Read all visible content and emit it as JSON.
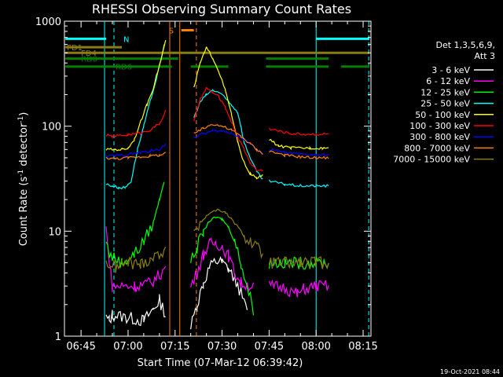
{
  "chart_data": {
    "type": "line",
    "title": "RHESSI Observing Summary Count Rates",
    "xlabel": "Start Time (07-Mar-12 06:39:42)",
    "ylabel_text": "Count Rate (s",
    "ylabel_sup": "-1",
    "ylabel_tail": " detector",
    "ylabel_close": ")",
    "yscale": "log",
    "ylim": [
      1,
      1000
    ],
    "xlim": [
      39.7,
      137.5
    ],
    "x_unit": "minutes after 06:00 UT",
    "x_ticks": [
      {
        "label": "06:45",
        "t": 45
      },
      {
        "label": "07:00",
        "t": 60
      },
      {
        "label": "07:15",
        "t": 75
      },
      {
        "label": "07:30",
        "t": 90
      },
      {
        "label": "07:45",
        "t": 105
      },
      {
        "label": "08:00",
        "t": 120
      },
      {
        "label": "08:15",
        "t": 135
      }
    ],
    "y_ticks": [
      {
        "label": "1",
        "v": 1
      },
      {
        "label": "10",
        "v": 10
      },
      {
        "label": "100",
        "v": 100
      },
      {
        "label": "1000",
        "v": 1000
      }
    ],
    "legend_header": [
      "Det 1,3,5,6,9,",
      "Att 3"
    ],
    "series": [
      {
        "name": "3 - 6 keV",
        "color": "#ffffff",
        "values": [
          [
            52,
            null
          ],
          [
            53,
            1.5
          ],
          [
            54,
            1.4
          ],
          [
            55,
            1.6
          ],
          [
            60,
            1.5
          ],
          [
            65,
            1.4
          ],
          [
            68,
            1.8
          ],
          [
            70,
            2.2
          ],
          [
            72,
            1.6
          ],
          [
            73,
            null
          ],
          [
            79,
            null
          ],
          [
            80,
            1.2
          ],
          [
            82,
            2
          ],
          [
            84,
            3.2
          ],
          [
            86,
            4.5
          ],
          [
            88,
            5.2
          ],
          [
            90,
            5
          ],
          [
            92,
            4.4
          ],
          [
            94,
            3.5
          ],
          [
            96,
            2.6
          ],
          [
            98,
            1.7
          ],
          [
            99,
            null
          ]
        ]
      },
      {
        "name": "6 - 12 keV",
        "color": "#ff00ff",
        "values": [
          [
            52,
            null
          ],
          [
            53,
            11
          ],
          [
            54,
            5
          ],
          [
            55,
            3
          ],
          [
            62,
            3
          ],
          [
            67,
            3.2
          ],
          [
            70,
            3.8
          ],
          [
            72,
            4.5
          ],
          [
            73,
            null
          ],
          [
            79,
            null
          ],
          [
            80,
            3
          ],
          [
            82,
            4
          ],
          [
            84,
            6
          ],
          [
            86,
            7.5
          ],
          [
            88,
            7.8
          ],
          [
            90,
            7.2
          ],
          [
            92,
            5.8
          ],
          [
            94,
            4
          ],
          [
            96,
            3.2
          ],
          [
            100,
            3
          ],
          [
            104,
            null
          ],
          [
            105,
            3
          ],
          [
            110,
            2.9
          ],
          [
            114,
            2.5
          ],
          [
            116,
            2.8
          ],
          [
            120,
            3
          ],
          [
            124,
            3
          ],
          [
            126,
            null
          ]
        ]
      },
      {
        "name": "12 - 25 keV",
        "color": "#00ff00",
        "values": [
          [
            52,
            null
          ],
          [
            53,
            8
          ],
          [
            54,
            6
          ],
          [
            58,
            5
          ],
          [
            62,
            6
          ],
          [
            65,
            8
          ],
          [
            68,
            12
          ],
          [
            70,
            20
          ],
          [
            71.5,
            30
          ],
          [
            73,
            null
          ],
          [
            79,
            null
          ],
          [
            80,
            5
          ],
          [
            82,
            7
          ],
          [
            84,
            10
          ],
          [
            86,
            12.5
          ],
          [
            88,
            13.5
          ],
          [
            90,
            13
          ],
          [
            92,
            11
          ],
          [
            94,
            8
          ],
          [
            96,
            5
          ],
          [
            98,
            3
          ],
          [
            100,
            1.8
          ],
          [
            104,
            null
          ],
          [
            105,
            5
          ],
          [
            110,
            5
          ],
          [
            115,
            5
          ],
          [
            120,
            5
          ],
          [
            124,
            5
          ],
          [
            126,
            null
          ]
        ]
      },
      {
        "name": "25 - 50 keV",
        "color": "#00ffff",
        "values": [
          [
            52,
            null
          ],
          [
            53,
            28
          ],
          [
            55,
            27
          ],
          [
            57,
            26
          ],
          [
            59,
            26
          ],
          [
            61,
            30
          ],
          [
            63,
            60
          ],
          [
            65,
            100
          ],
          [
            67,
            170
          ],
          [
            69,
            280
          ],
          [
            70.5,
            420
          ],
          [
            71.5,
            600
          ],
          [
            72.5,
            null
          ],
          [
            80,
            null
          ],
          [
            81,
            120
          ],
          [
            83,
            170
          ],
          [
            85,
            200
          ],
          [
            87,
            220
          ],
          [
            89,
            210
          ],
          [
            91,
            185
          ],
          [
            93,
            160
          ],
          [
            95,
            135
          ],
          [
            96,
            100
          ],
          [
            97,
            70
          ],
          [
            99,
            50
          ],
          [
            101,
            37
          ],
          [
            103,
            31
          ],
          [
            104,
            null
          ],
          [
            105,
            30
          ],
          [
            110,
            28
          ],
          [
            115,
            27
          ],
          [
            120,
            27
          ],
          [
            124,
            27
          ],
          [
            126,
            null
          ]
        ]
      },
      {
        "name": "50 - 100 keV",
        "color": "#ffff00",
        "values": [
          [
            52,
            null
          ],
          [
            53,
            60
          ],
          [
            56,
            60
          ],
          [
            58,
            60
          ],
          [
            60,
            62
          ],
          [
            62,
            75
          ],
          [
            64,
            110
          ],
          [
            66,
            160
          ],
          [
            68,
            230
          ],
          [
            70,
            380
          ],
          [
            72,
            650
          ],
          [
            73,
            null
          ],
          [
            80,
            null
          ],
          [
            81,
            230
          ],
          [
            83,
            400
          ],
          [
            85,
            560
          ],
          [
            87,
            450
          ],
          [
            89,
            330
          ],
          [
            91,
            220
          ],
          [
            93,
            130
          ],
          [
            95,
            70
          ],
          [
            97,
            45
          ],
          [
            99,
            35
          ],
          [
            101,
            32
          ],
          [
            103,
            34
          ],
          [
            104,
            null
          ],
          [
            105,
            75
          ],
          [
            108,
            65
          ],
          [
            112,
            62
          ],
          [
            118,
            62
          ],
          [
            122,
            62
          ],
          [
            124,
            62
          ],
          [
            126,
            null
          ]
        ]
      },
      {
        "name": "100 - 300 keV",
        "color": "#ff0000",
        "values": [
          [
            52,
            null
          ],
          [
            53,
            82
          ],
          [
            55,
            80
          ],
          [
            60,
            83
          ],
          [
            64,
            86
          ],
          [
            67,
            92
          ],
          [
            70,
            105
          ],
          [
            72,
            140
          ],
          [
            73,
            null
          ],
          [
            80,
            null
          ],
          [
            81,
            110
          ],
          [
            83,
            180
          ],
          [
            85,
            230
          ],
          [
            87,
            210
          ],
          [
            89,
            190
          ],
          [
            91,
            150
          ],
          [
            93,
            110
          ],
          [
            95,
            80
          ],
          [
            97,
            60
          ],
          [
            99,
            45
          ],
          [
            101,
            38
          ],
          [
            103,
            38
          ],
          [
            104,
            null
          ],
          [
            105,
            95
          ],
          [
            108,
            90
          ],
          [
            112,
            85
          ],
          [
            116,
            84
          ],
          [
            120,
            84
          ],
          [
            124,
            84
          ],
          [
            126,
            null
          ]
        ]
      },
      {
        "name": "300 - 800 keV",
        "color": "#0000ff",
        "values": [
          [
            52,
            null
          ],
          [
            53,
            52
          ],
          [
            56,
            52
          ],
          [
            60,
            54
          ],
          [
            64,
            56
          ],
          [
            67,
            58
          ],
          [
            70,
            60
          ],
          [
            72,
            68
          ],
          [
            73,
            null
          ],
          [
            80,
            null
          ],
          [
            81,
            78
          ],
          [
            84,
            85
          ],
          [
            87,
            90
          ],
          [
            90,
            90
          ],
          [
            93,
            86
          ],
          [
            96,
            78
          ],
          [
            99,
            68
          ],
          [
            101,
            60
          ],
          [
            103,
            55
          ],
          [
            104,
            null
          ],
          [
            105,
            60
          ],
          [
            110,
            56
          ],
          [
            115,
            54
          ],
          [
            120,
            53
          ],
          [
            124,
            53
          ],
          [
            126,
            null
          ]
        ]
      },
      {
        "name": "800 - 7000 keV",
        "color": "#ff8000",
        "values": [
          [
            52,
            null
          ],
          [
            53,
            50
          ],
          [
            56,
            49
          ],
          [
            60,
            50
          ],
          [
            64,
            51
          ],
          [
            67,
            52
          ],
          [
            70,
            53
          ],
          [
            72,
            55
          ],
          [
            73,
            null
          ],
          [
            80,
            null
          ],
          [
            81,
            85
          ],
          [
            84,
            95
          ],
          [
            87,
            105
          ],
          [
            90,
            100
          ],
          [
            93,
            92
          ],
          [
            96,
            80
          ],
          [
            99,
            68
          ],
          [
            101,
            60
          ],
          [
            103,
            55
          ],
          [
            104,
            null
          ],
          [
            105,
            58
          ],
          [
            110,
            53
          ],
          [
            115,
            51
          ],
          [
            120,
            50
          ],
          [
            124,
            50
          ],
          [
            126,
            null
          ]
        ]
      },
      {
        "name": "7000 - 15000 keV",
        "color": "#8b7d14",
        "values": [
          [
            52,
            null
          ],
          [
            53,
            5
          ],
          [
            56,
            4.5
          ],
          [
            60,
            5
          ],
          [
            64,
            4.8
          ],
          [
            67,
            5.5
          ],
          [
            70,
            6
          ],
          [
            72,
            7
          ],
          [
            73,
            null
          ],
          [
            80,
            null
          ],
          [
            81,
            9
          ],
          [
            83,
            12
          ],
          [
            85,
            14
          ],
          [
            87,
            15.5
          ],
          [
            89,
            16
          ],
          [
            91,
            15
          ],
          [
            93,
            13
          ],
          [
            95,
            11
          ],
          [
            97,
            9
          ],
          [
            99,
            8
          ],
          [
            101,
            7
          ],
          [
            103,
            6
          ],
          [
            104,
            null
          ],
          [
            105,
            5
          ],
          [
            110,
            5
          ],
          [
            115,
            5
          ],
          [
            120,
            5
          ],
          [
            124,
            5
          ],
          [
            126,
            null
          ]
        ]
      }
    ],
    "flags": [
      {
        "name": "FD1",
        "label": "FD1",
        "color": "#8b7d14",
        "level": 565,
        "label_at": 40.5,
        "segments": [
          [
            40,
            58
          ]
        ]
      },
      {
        "name": "FD4",
        "label": "FD4",
        "color": "#8b7d14",
        "level": 500,
        "label_at": 45,
        "segments": [
          [
            40,
            137
          ]
        ]
      },
      {
        "name": "RD0",
        "label": "RD0",
        "color": "#008000",
        "level": 440,
        "label_at": 45,
        "segments": [
          [
            40,
            76
          ],
          [
            104,
            124
          ]
        ]
      },
      {
        "name": "RD6",
        "label": "RD6",
        "color": "#008000",
        "level": 370,
        "label_at": 56,
        "segments": [
          [
            40,
            74
          ],
          [
            80,
            92
          ],
          [
            104,
            124
          ],
          [
            128,
            137
          ]
        ]
      },
      {
        "name": "N",
        "label": "N",
        "color": "#00ffff",
        "level": 680,
        "label_at": 58.5,
        "segments": [
          [
            40,
            53
          ],
          [
            120,
            137
          ]
        ]
      },
      {
        "name": "S",
        "label": "S",
        "color": "#ff8000",
        "level": 820,
        "label_at": 73,
        "segments": [
          [
            77,
            81
          ]
        ]
      }
    ],
    "vlines": [
      {
        "t": 52.5,
        "color": "#00ffff",
        "dash": "none"
      },
      {
        "t": 55.5,
        "color": "#00ffff",
        "dash": "5,4"
      },
      {
        "t": 73.3,
        "color": "#ff8000",
        "dash": "none"
      },
      {
        "t": 76.5,
        "color": "#ff8000",
        "dash": "none"
      },
      {
        "t": 81.8,
        "color": "#ff8000",
        "dash": "5,4"
      },
      {
        "t": 120.0,
        "color": "#00ffff",
        "dash": "none"
      },
      {
        "t": 136.8,
        "color": "#00ffff",
        "dash": "5,4"
      }
    ],
    "timestamp": "19-Oct-2021 08:44"
  }
}
